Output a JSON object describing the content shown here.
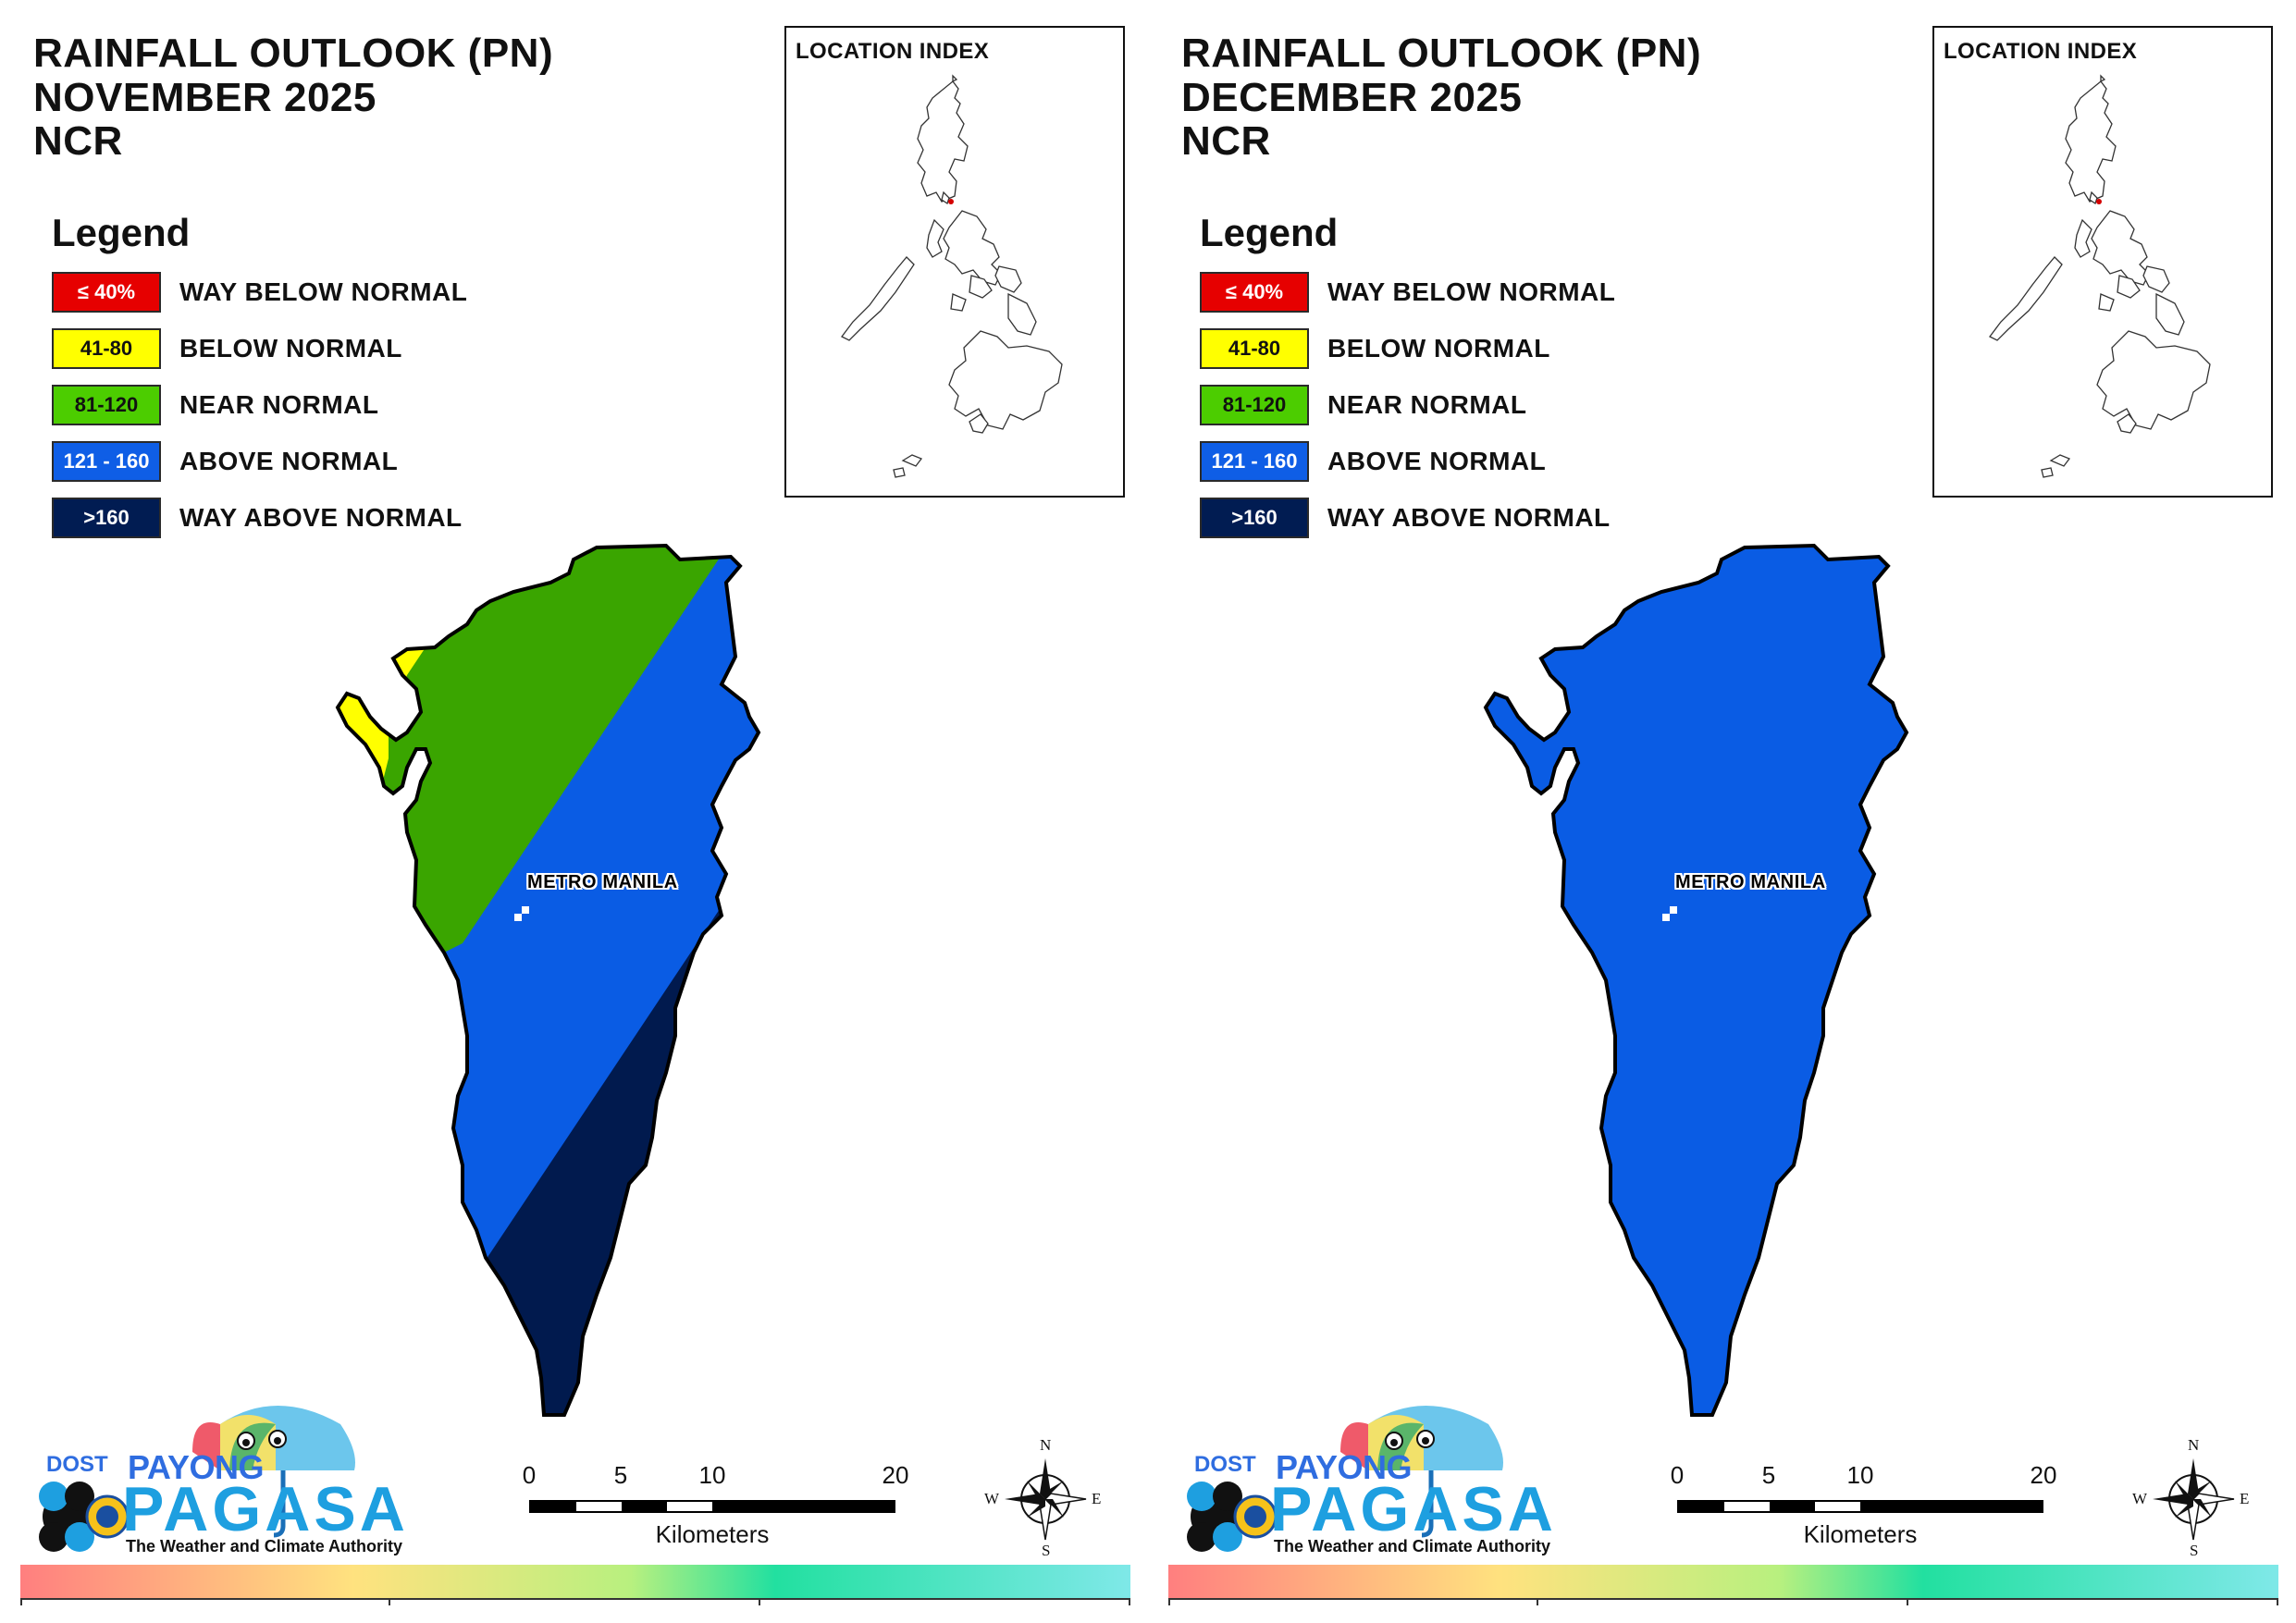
{
  "panels": [
    {
      "id": "november",
      "title_lines": [
        "RAINFALL OUTLOOK (PN)",
        "NOVEMBER 2025",
        "NCR"
      ],
      "legend": {
        "title": "Legend",
        "items": [
          {
            "range": "≤ 40%",
            "label": "WAY BELOW NORMAL",
            "color": "#e60000",
            "text_color": "#ffffff"
          },
          {
            "range": "41-80",
            "label": "BELOW NORMAL",
            "color": "#ffff00",
            "text_color": "#111111"
          },
          {
            "range": "81-120",
            "label": "NEAR NORMAL",
            "color": "#4ccd00",
            "text_color": "#111111"
          },
          {
            "range": "121 - 160",
            "label": "ABOVE NORMAL",
            "color": "#0f5ee6",
            "text_color": "#ffffff"
          },
          {
            "range": ">160",
            "label": "WAY ABOVE NORMAL",
            "color": "#011c52",
            "text_color": "#ffffff"
          }
        ]
      },
      "location_index_title": "LOCATION INDEX",
      "map_label": "METRO MANILA",
      "map_categories_shown": [
        "BELOW NORMAL",
        "NEAR NORMAL",
        "ABOVE NORMAL",
        "WAY ABOVE NORMAL"
      ],
      "logo": {
        "dost": "DOST",
        "payong": "PAYONG",
        "pagasa": "PAGASA",
        "tagline": "The Weather and Climate Authority"
      },
      "scalebar": {
        "ticks": [
          "0",
          "5",
          "10",
          "20"
        ],
        "unit": "Kilometers"
      },
      "compass": {
        "n": "N",
        "e": "E",
        "s": "S",
        "w": "W"
      }
    },
    {
      "id": "december",
      "title_lines": [
        "RAINFALL OUTLOOK (PN)",
        "DECEMBER 2025",
        "NCR"
      ],
      "legend": {
        "title": "Legend",
        "items": [
          {
            "range": "≤ 40%",
            "label": "WAY BELOW NORMAL",
            "color": "#e60000",
            "text_color": "#ffffff"
          },
          {
            "range": "41-80",
            "label": "BELOW NORMAL",
            "color": "#ffff00",
            "text_color": "#111111"
          },
          {
            "range": "81-120",
            "label": "NEAR NORMAL",
            "color": "#4ccd00",
            "text_color": "#111111"
          },
          {
            "range": "121 - 160",
            "label": "ABOVE NORMAL",
            "color": "#0f5ee6",
            "text_color": "#ffffff"
          },
          {
            "range": ">160",
            "label": "WAY ABOVE NORMAL",
            "color": "#011c52",
            "text_color": "#ffffff"
          }
        ]
      },
      "location_index_title": "LOCATION INDEX",
      "map_label": "METRO MANILA",
      "map_categories_shown": [
        "ABOVE NORMAL"
      ],
      "logo": {
        "dost": "DOST",
        "payong": "PAYONG",
        "pagasa": "PAGASA",
        "tagline": "The Weather and Climate Authority"
      },
      "scalebar": {
        "ticks": [
          "0",
          "5",
          "10",
          "20"
        ],
        "unit": "Kilometers"
      },
      "compass": {
        "n": "N",
        "e": "E",
        "s": "S",
        "w": "W"
      }
    }
  ],
  "colors": {
    "way_below": "#e60000",
    "below": "#ffff00",
    "near": "#3aa500",
    "above": "#0a5ce4",
    "way_above": "#011a4e"
  }
}
